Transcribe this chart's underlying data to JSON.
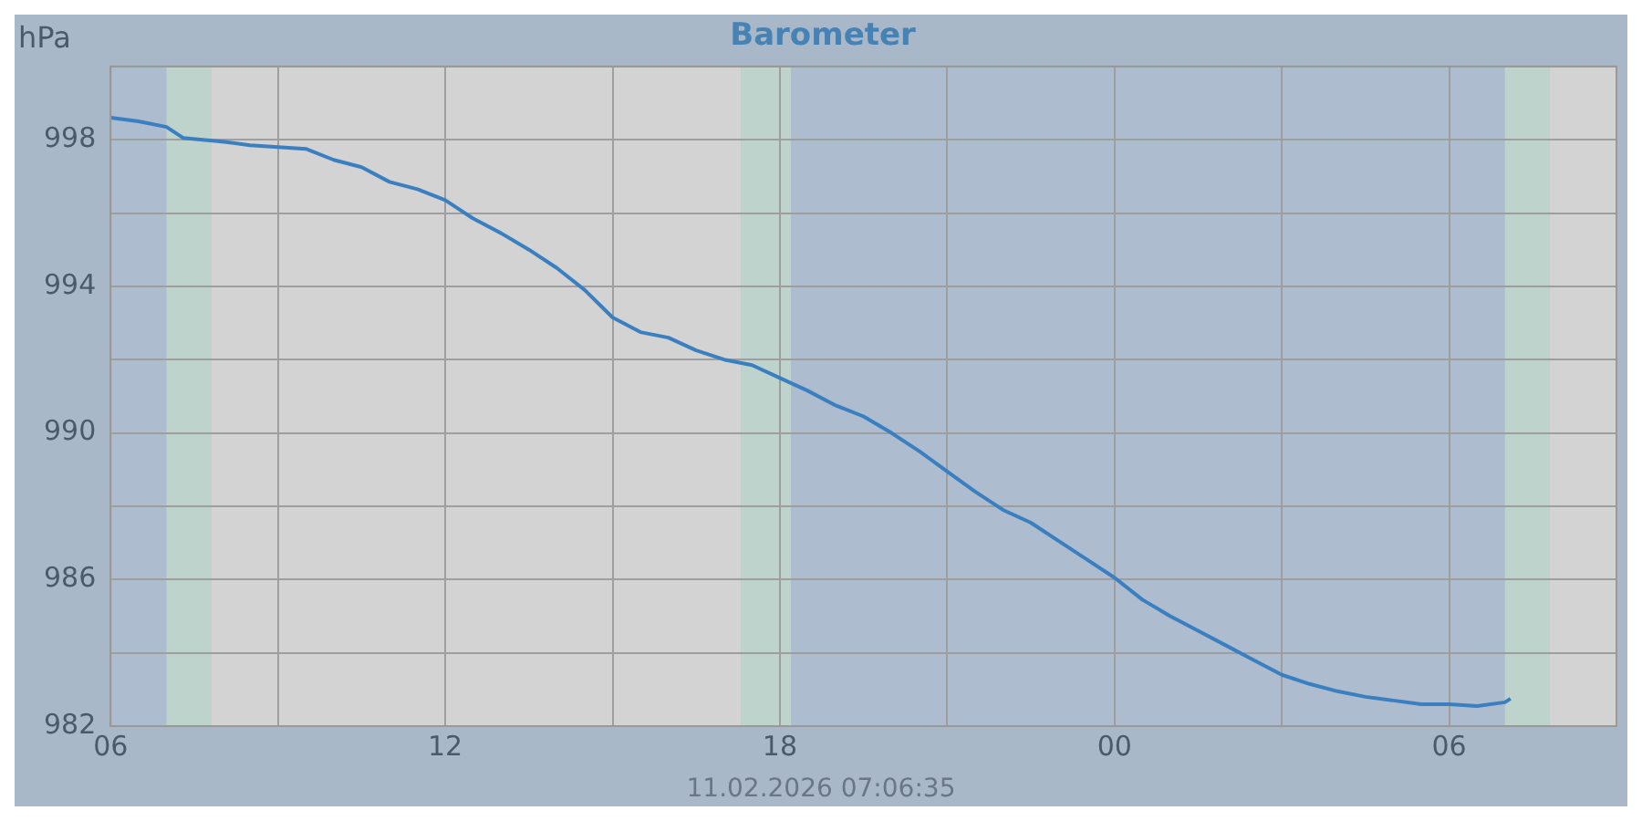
{
  "chart_data": {
    "type": "line",
    "title": "Barometer",
    "ylabel": "hPa",
    "annotations": [
      "11.02.2026 07:06:35"
    ],
    "x": [
      6,
      6.5,
      7,
      7.3,
      8,
      8.5,
      9,
      9.5,
      10,
      10.5,
      11,
      11.5,
      12,
      12.5,
      13,
      13.5,
      14,
      14.5,
      15,
      15.5,
      16,
      16.5,
      17,
      17.5,
      18,
      18.5,
      19,
      19.5,
      20,
      20.5,
      21,
      21.5,
      22,
      22.5,
      23,
      23.5,
      24,
      24.5,
      25,
      25.5,
      26,
      26.5,
      27,
      27.5,
      28,
      28.5,
      29,
      29.5,
      30,
      30.5,
      31,
      31.1
    ],
    "series": [
      {
        "color": "#3a7fc0",
        "values": [
          998.6,
          998.5,
          998.35,
          998.05,
          997.95,
          997.85,
          997.8,
          997.75,
          997.45,
          997.25,
          996.85,
          996.65,
          996.35,
          995.85,
          995.45,
          995.0,
          994.5,
          993.9,
          993.15,
          992.75,
          992.6,
          992.25,
          992.0,
          991.85,
          991.5,
          991.15,
          990.75,
          990.45,
          990.0,
          989.5,
          988.95,
          988.4,
          987.9,
          987.55,
          987.05,
          986.55,
          986.05,
          985.45,
          985.0,
          984.6,
          984.2,
          983.8,
          983.4,
          983.15,
          982.95,
          982.8,
          982.7,
          982.6,
          982.6,
          982.55,
          982.65,
          982.75
        ]
      }
    ],
    "xlim": [
      6,
      33
    ],
    "xticks": [
      {
        "value": 6,
        "label": "06"
      },
      {
        "value": 9,
        "label": null
      },
      {
        "value": 12,
        "label": "12"
      },
      {
        "value": 15,
        "label": null
      },
      {
        "value": 18,
        "label": "18"
      },
      {
        "value": 21,
        "label": null
      },
      {
        "value": 24,
        "label": "00"
      },
      {
        "value": 27,
        "label": null
      },
      {
        "value": 30,
        "label": "06"
      },
      {
        "value": 33,
        "label": null
      }
    ],
    "ylim": [
      982,
      1000
    ],
    "yticks": [
      982,
      {
        "value": 984,
        "label": null
      },
      986,
      {
        "value": 988,
        "label": null
      },
      990,
      {
        "value": 992,
        "label": null
      },
      994,
      {
        "value": 996,
        "label": null
      },
      998,
      {
        "value": 1000,
        "label": null
      }
    ],
    "bands": [
      {
        "axis": "x",
        "from": 6,
        "to": 7,
        "color": "#adbccf"
      },
      {
        "axis": "x",
        "from": 7,
        "to": 7.8,
        "color": "#bdd3cb"
      },
      {
        "axis": "x",
        "from": 7.8,
        "to": 17.3,
        "color": "#d3d3d3"
      },
      {
        "axis": "x",
        "from": 17.3,
        "to": 18.2,
        "color": "#bdd3cb"
      },
      {
        "axis": "x",
        "from": 18.2,
        "to": 31,
        "color": "#adbccf"
      },
      {
        "axis": "x",
        "from": 31,
        "to": 31.8,
        "color": "#bdd3cb"
      },
      {
        "axis": "x",
        "from": 31.8,
        "to": 33,
        "color": "#d3d3d3"
      }
    ],
    "grid": true,
    "legend": false,
    "marker": "none",
    "line_style": "solid"
  }
}
